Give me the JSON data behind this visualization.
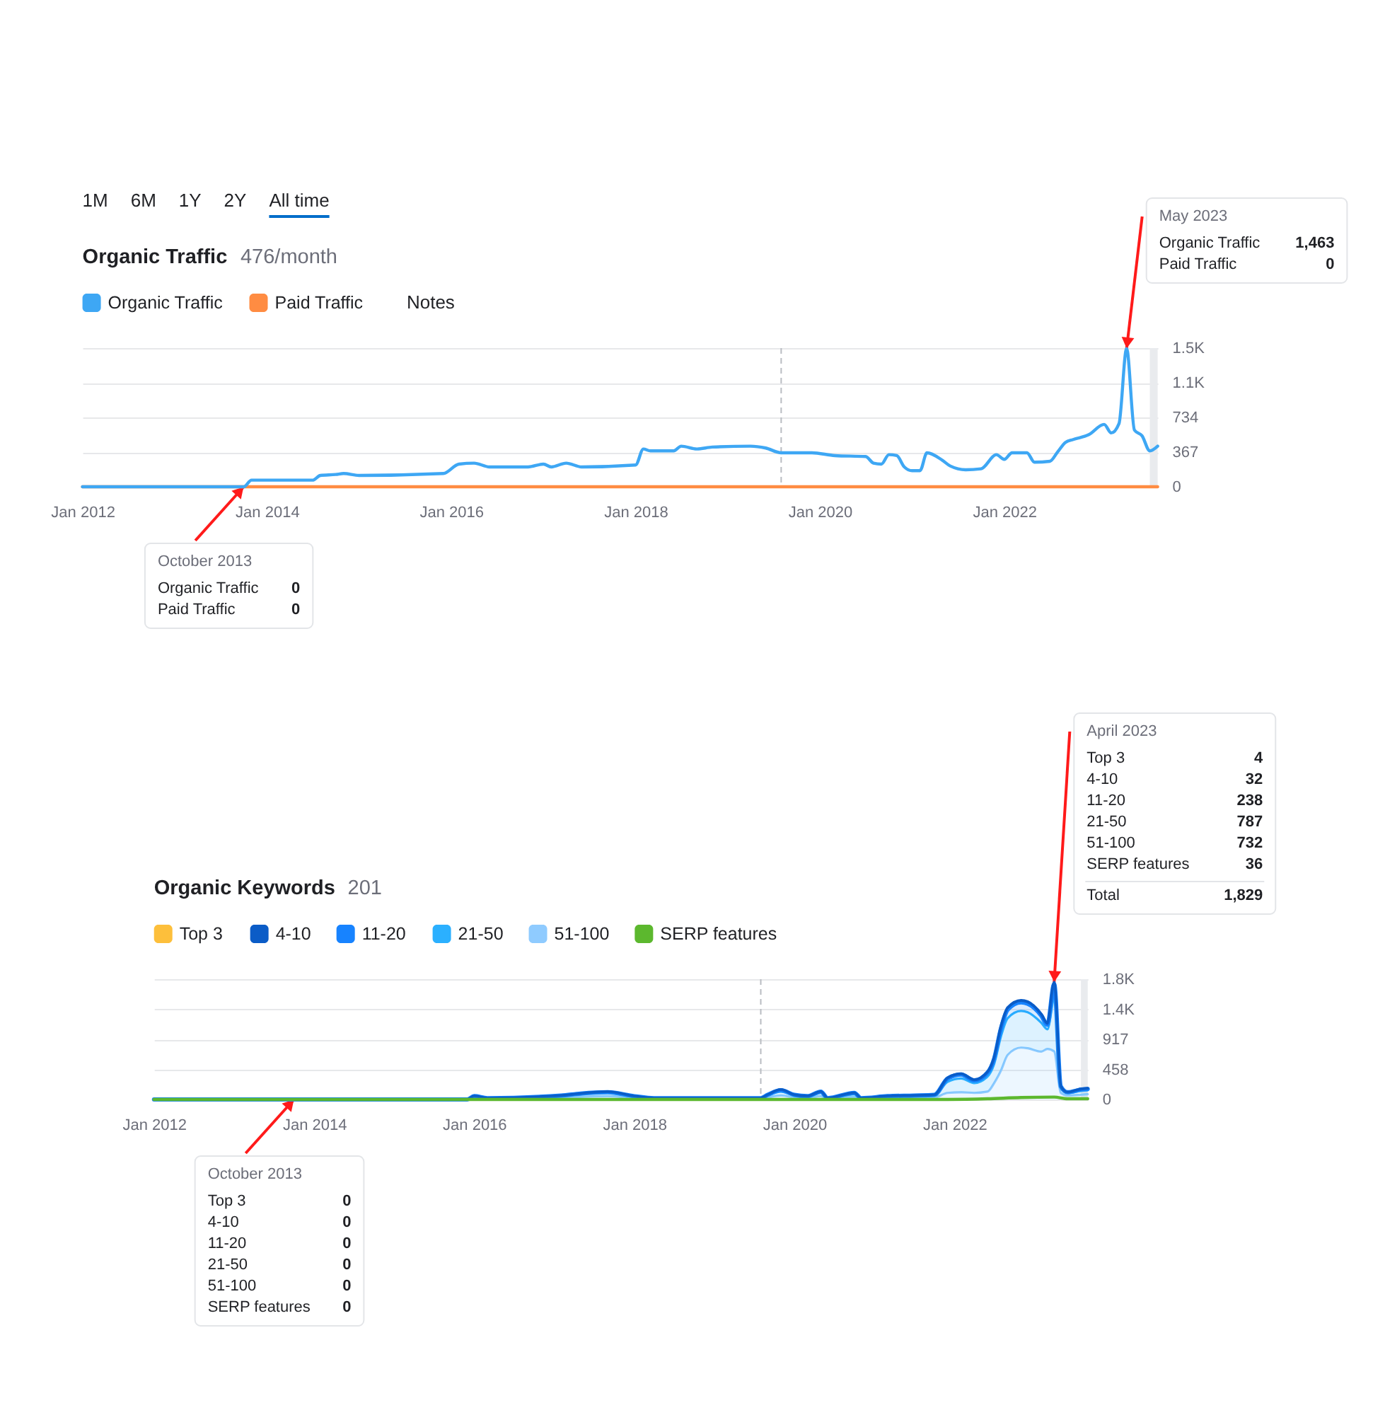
{
  "chart_data": [
    {
      "type": "line",
      "title": "Organic Traffic",
      "subtitle": "476/month",
      "legend": "top left",
      "grid": "y",
      "xlim": [
        "2012-01",
        "2023-09"
      ],
      "xticks": [
        {
          "value": "2012-01",
          "label": "Jan 2012"
        },
        {
          "value": "2014-01",
          "label": "Jan 2014"
        },
        {
          "value": "2016-01",
          "label": "Jan 2016"
        },
        {
          "value": "2018-01",
          "label": "Jan 2018"
        },
        {
          "value": "2020-01",
          "label": "Jan 2020"
        },
        {
          "value": "2022-01",
          "label": "Jan 2022"
        }
      ],
      "ylim": [
        0,
        1468
      ],
      "yticks": [
        0,
        367,
        734,
        {
          "value": 1101,
          "label": "1.1K"
        },
        {
          "value": 1468,
          "label": "1.5K"
        }
      ],
      "series": [
        {
          "name": "Organic Traffic",
          "color": "#3ea7f4",
          "x": [
            "2012-01",
            "2013-10",
            "2013-11",
            "2014-07",
            "2014-08",
            "2014-10",
            "2014-11",
            "2015-01",
            "2015-12",
            "2016-02",
            "2016-04",
            "2016-06",
            "2016-11",
            "2017-01",
            "2017-02",
            "2017-04",
            "2017-06",
            "2018-01",
            "2018-02",
            "2018-03",
            "2018-06",
            "2018-07",
            "2018-09",
            "2018-11",
            "2019-04",
            "2019-06",
            "2019-08",
            "2019-12",
            "2020-03",
            "2020-07",
            "2020-08",
            "2020-09",
            "2020-10",
            "2020-11",
            "2020-12",
            "2021-01",
            "2021-02",
            "2021-03",
            "2021-05",
            "2021-06",
            "2021-08",
            "2021-10",
            "2021-12",
            "2022-01",
            "2022-02",
            "2022-04",
            "2022-05",
            "2022-07",
            "2022-08",
            "2022-09",
            "2022-10",
            "2022-12",
            "2023-02",
            "2023-03",
            "2023-04",
            "2023-05",
            "2023-06",
            "2023-07",
            "2023-08",
            "2023-09"
          ],
          "values": [
            0,
            0,
            70,
            70,
            120,
            130,
            140,
            120,
            140,
            240,
            250,
            210,
            210,
            240,
            210,
            250,
            210,
            230,
            400,
            380,
            380,
            430,
            400,
            420,
            430,
            410,
            360,
            360,
            330,
            320,
            250,
            240,
            340,
            330,
            210,
            170,
            170,
            360,
            280,
            220,
            180,
            190,
            340,
            290,
            360,
            360,
            260,
            270,
            370,
            470,
            500,
            550,
            660,
            570,
            670,
            1463,
            600,
            540,
            380,
            430
          ]
        },
        {
          "name": "Paid Traffic",
          "color": "#ff8c42",
          "x": [
            "2012-01",
            "2023-09"
          ],
          "values": [
            0,
            0
          ]
        }
      ],
      "ref_lines": [
        {
          "axis": "x",
          "value": "2019-08",
          "color": "#b9bcc2",
          "line_style": "dashed"
        }
      ],
      "bands": [
        {
          "axis": "x",
          "from": "2023-08",
          "to": "2023-09",
          "color": "#e9ebee"
        }
      ],
      "annotations": [
        "1M",
        "6M",
        "1Y",
        "2Y",
        "All time",
        "Notes",
        {
          "text": "May 2023",
          "x": "2023-05",
          "y": 1463
        },
        "Organic Traffic",
        "1,463",
        "Paid Traffic",
        "0",
        {
          "text": "October 2013",
          "x": "2013-10",
          "y": 0
        },
        "Organic Traffic",
        "0",
        "Paid Traffic",
        "0"
      ]
    },
    {
      "type": "area",
      "stacked": true,
      "title": "Organic Keywords",
      "subtitle": "201",
      "legend": "top left",
      "grid": "y",
      "xlim": [
        "2012-01",
        "2023-09"
      ],
      "xticks": [
        {
          "value": "2012-01",
          "label": "Jan 2012"
        },
        {
          "value": "2014-01",
          "label": "Jan 2014"
        },
        {
          "value": "2016-01",
          "label": "Jan 2016"
        },
        {
          "value": "2018-01",
          "label": "Jan 2018"
        },
        {
          "value": "2020-01",
          "label": "Jan 2020"
        },
        {
          "value": "2022-01",
          "label": "Jan 2022"
        }
      ],
      "ylim": [
        0,
        1834
      ],
      "yticks": [
        0,
        458,
        917,
        {
          "value": 1375,
          "label": "1.4K"
        },
        {
          "value": 1834,
          "label": "1.8K"
        }
      ],
      "x": [
        "2012-01",
        "2015-12",
        "2016-01",
        "2016-03",
        "2017-02",
        "2017-05",
        "2017-09",
        "2018-01",
        "2018-04",
        "2019-08",
        "2019-09",
        "2019-11",
        "2020-01",
        "2020-03",
        "2020-05",
        "2020-06",
        "2020-10",
        "2020-11",
        "2021-03",
        "2021-07",
        "2021-10",
        "2021-12",
        "2022-02",
        "2022-04",
        "2022-06",
        "2022-07",
        "2022-08",
        "2022-09",
        "2022-11",
        "2022-12",
        "2023-02",
        "2023-03",
        "2023-04",
        "2023-05",
        "2023-06",
        "2023-08",
        "2023-09"
      ],
      "series": [
        {
          "name": "51-100",
          "color": "#8fcbff",
          "values": [
            0,
            0,
            20,
            10,
            20,
            40,
            50,
            20,
            10,
            10,
            30,
            60,
            30,
            20,
            50,
            10,
            40,
            10,
            20,
            20,
            30,
            100,
            110,
            100,
            120,
            250,
            440,
            680,
            790,
            780,
            730,
            770,
            732,
            100,
            60,
            70,
            80
          ]
        },
        {
          "name": "21-50",
          "color": "#2bb0ff",
          "values": [
            0,
            0,
            20,
            10,
            30,
            40,
            50,
            20,
            10,
            10,
            30,
            60,
            30,
            20,
            50,
            10,
            40,
            10,
            20,
            30,
            30,
            170,
            210,
            150,
            230,
            290,
            520,
            560,
            560,
            550,
            440,
            300,
            787,
            80,
            40,
            60,
            60
          ]
        },
        {
          "name": "11-20",
          "color": "#1783ff",
          "values": [
            0,
            0,
            10,
            0,
            10,
            10,
            10,
            10,
            0,
            0,
            10,
            20,
            10,
            10,
            20,
            0,
            20,
            0,
            10,
            10,
            10,
            50,
            60,
            40,
            60,
            80,
            120,
            130,
            130,
            130,
            110,
            70,
            238,
            20,
            10,
            20,
            20
          ]
        },
        {
          "name": "4-10",
          "color": "#0b5cc7",
          "values": [
            0,
            0,
            0,
            0,
            0,
            0,
            10,
            0,
            0,
            0,
            0,
            10,
            0,
            0,
            0,
            0,
            0,
            0,
            0,
            0,
            0,
            10,
            10,
            10,
            10,
            20,
            30,
            30,
            30,
            30,
            20,
            20,
            32,
            0,
            0,
            10,
            10
          ]
        },
        {
          "name": "Top 3",
          "color": "#fdbf3b",
          "values": [
            null,
            null,
            null,
            null,
            null,
            null,
            null,
            null,
            null,
            null,
            null,
            null,
            null,
            null,
            null,
            null,
            null,
            null,
            null,
            null,
            null,
            null,
            null,
            null,
            null,
            null,
            null,
            null,
            null,
            null,
            null,
            null,
            null,
            null,
            null,
            null,
            null
          ]
        },
        {
          "name": "SERP features",
          "type": "line",
          "color": "#5cb82e",
          "x": [
            "2012-01",
            "2021-12",
            "2022-06",
            "2022-11",
            "2023-04",
            "2023-06",
            "2023-09"
          ],
          "values": [
            0,
            0,
            10,
            30,
            36,
            10,
            10
          ]
        }
      ],
      "ref_lines": [
        {
          "axis": "x",
          "value": "2019-08",
          "color": "#b9bcc2",
          "line_style": "dashed"
        }
      ],
      "bands": [
        {
          "axis": "x",
          "from": "2023-08",
          "to": "2023-09",
          "color": "#e9ebee"
        }
      ],
      "annotations": [
        {
          "text": "April 2023",
          "x": "2023-04",
          "y": 1789
        },
        "Top 3",
        "4",
        "4-10",
        "32",
        "11-20",
        "238",
        "21-50",
        "787",
        "51-100",
        "732",
        "SERP features",
        "36",
        "Total",
        "1,829",
        {
          "text": "October 2013",
          "x": "2013-10",
          "y": 0
        },
        "Top 3",
        "0",
        "4-10",
        "0",
        "11-20",
        "0",
        "21-50",
        "0",
        "51-100",
        "0",
        "SERP features",
        "0"
      ]
    }
  ]
}
